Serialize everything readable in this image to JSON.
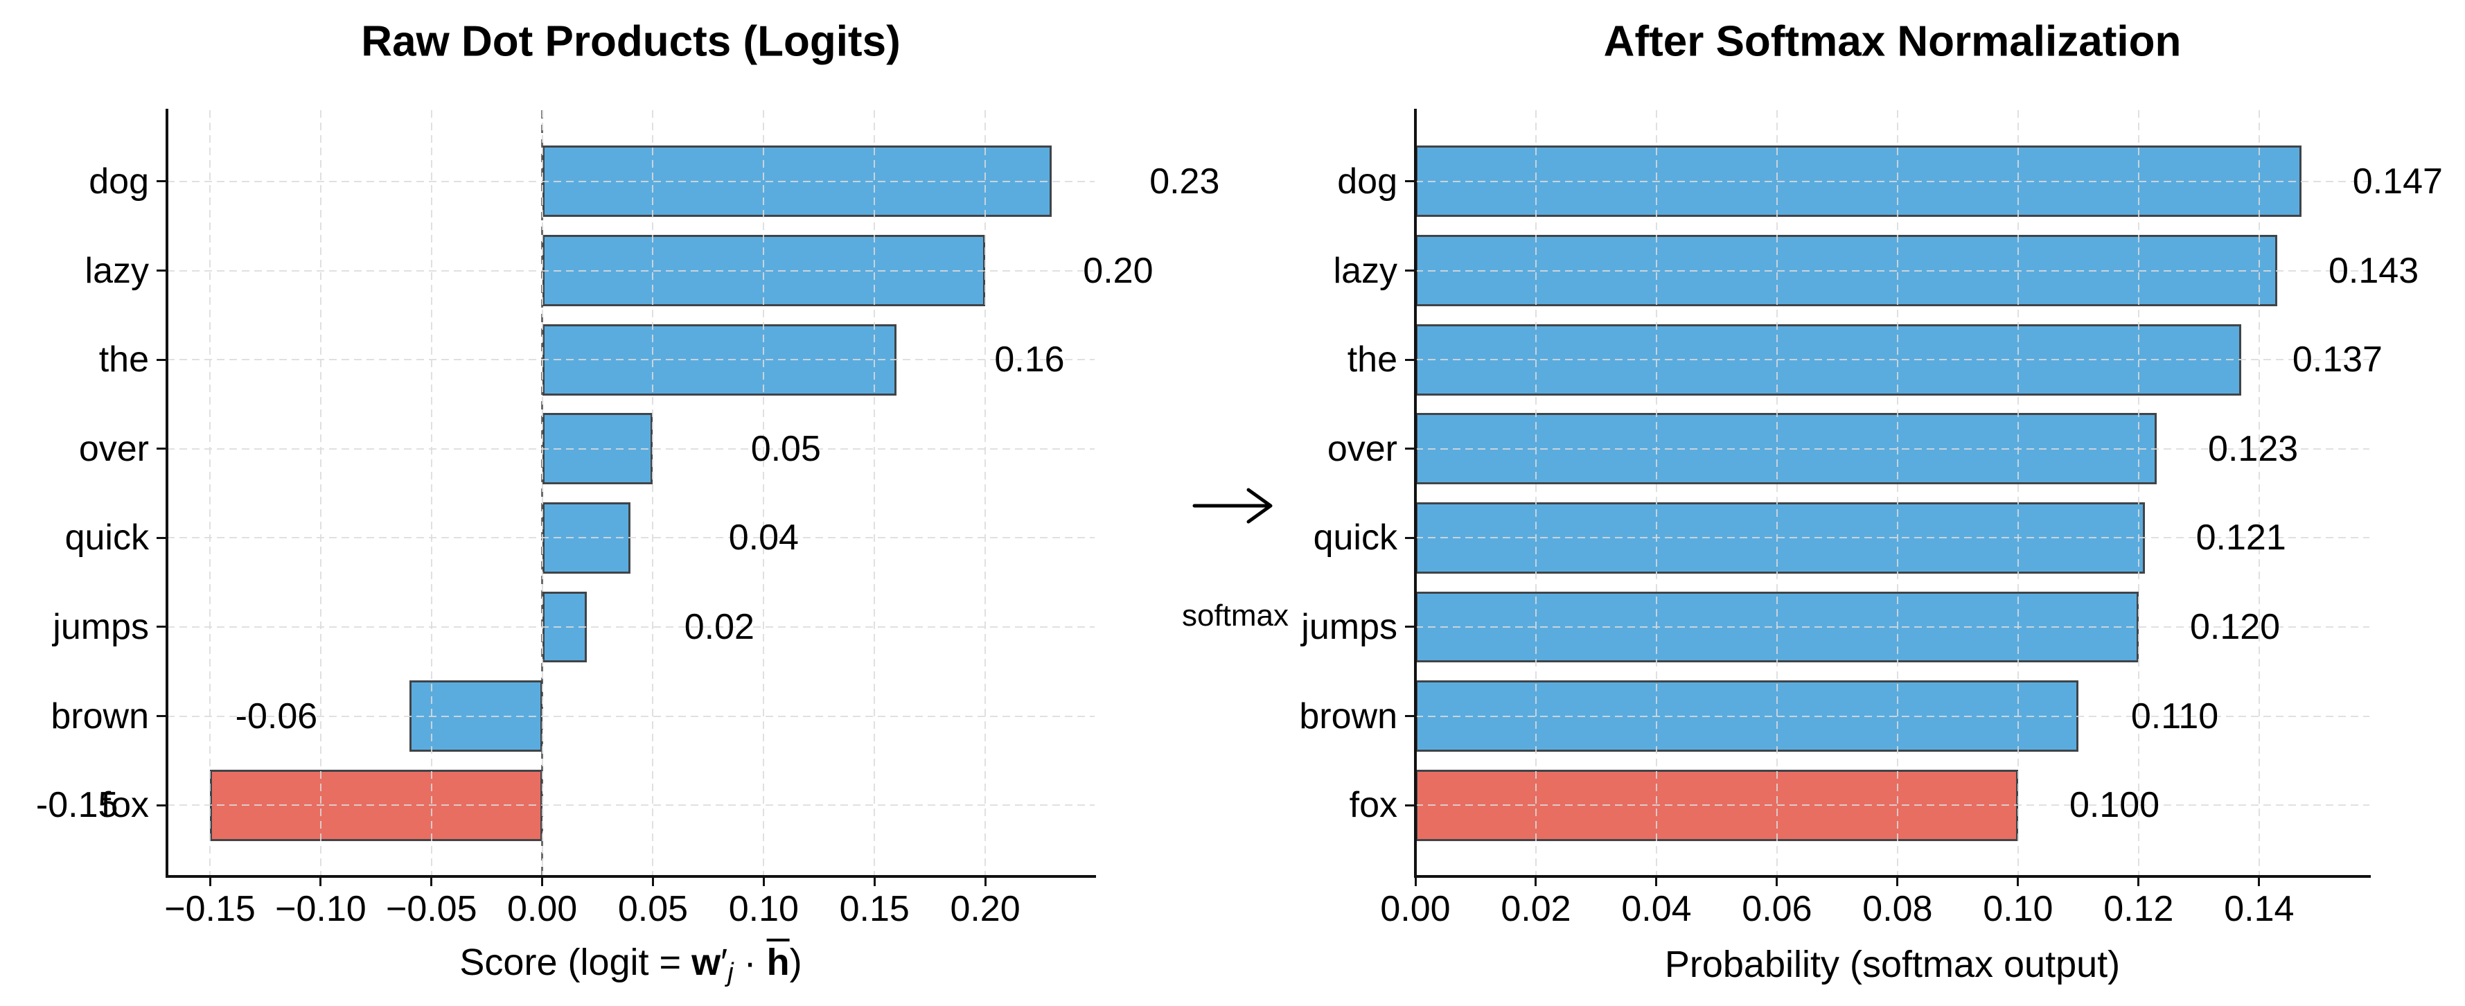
{
  "chart_data": [
    {
      "type": "bar",
      "orientation": "horizontal",
      "title": "Raw Dot Products (Logits)",
      "categories": [
        "dog",
        "lazy",
        "the",
        "over",
        "quick",
        "jumps",
        "brown",
        "fox"
      ],
      "values": [
        0.23,
        0.2,
        0.16,
        0.05,
        0.04,
        0.02,
        -0.06,
        -0.15
      ],
      "bar_labels": [
        "0.23",
        "0.20",
        "0.16",
        "0.05",
        "0.04",
        "0.02",
        "-0.06",
        "-0.15"
      ],
      "highlight_category": "fox",
      "xlabel": "Score (logit = w′ⱼ · h̄)",
      "xlabel_parts": [
        {
          "text": "Score (logit = "
        },
        {
          "text": "w",
          "bold": true
        },
        {
          "text": "′"
        },
        {
          "text": "j",
          "sub": true
        },
        {
          "text": " · "
        },
        {
          "text": "h",
          "bold": true,
          "over": true
        },
        {
          "text": ")"
        }
      ],
      "xticks": [
        -0.15,
        -0.1,
        -0.05,
        0.0,
        0.05,
        0.1,
        0.15,
        0.2
      ],
      "xtick_labels": [
        "−0.15",
        "−0.10",
        "−0.05",
        "0.00",
        "0.05",
        "0.10",
        "0.15",
        "0.20"
      ],
      "xlim": [
        -0.1694,
        0.2494
      ],
      "grid": true,
      "zero_line": true,
      "label_offset": 0.06
    },
    {
      "type": "bar",
      "orientation": "horizontal",
      "title": "After Softmax Normalization",
      "categories": [
        "dog",
        "lazy",
        "the",
        "over",
        "quick",
        "jumps",
        "brown",
        "fox"
      ],
      "values": [
        0.147,
        0.143,
        0.137,
        0.123,
        0.121,
        0.12,
        0.11,
        0.1
      ],
      "bar_labels": [
        "0.147",
        "0.143",
        "0.137",
        "0.123",
        "0.121",
        "0.120",
        "0.110",
        "0.100"
      ],
      "highlight_category": "fox",
      "xlabel": "Probability (softmax output)",
      "xlabel_parts": [
        {
          "text": "Probability (softmax output)"
        }
      ],
      "xticks": [
        0.0,
        0.02,
        0.04,
        0.06,
        0.08,
        0.1,
        0.12,
        0.14
      ],
      "xtick_labels": [
        "0.00",
        "0.02",
        "0.04",
        "0.06",
        "0.08",
        "0.10",
        "0.12",
        "0.14"
      ],
      "xlim": [
        0,
        0.1583
      ],
      "grid": true,
      "zero_line": false,
      "label_offset": 0.016
    }
  ],
  "connector": {
    "label": "softmax",
    "arrow_icon": "right-arrow"
  },
  "colors": {
    "bar_blue": "#5BACDE",
    "bar_red": "#E86E62",
    "bar_edge": "#404448",
    "grid": "#DBDBDB",
    "zero_line": "#6C6C6C",
    "text": "#000000",
    "spine": "#111111"
  }
}
